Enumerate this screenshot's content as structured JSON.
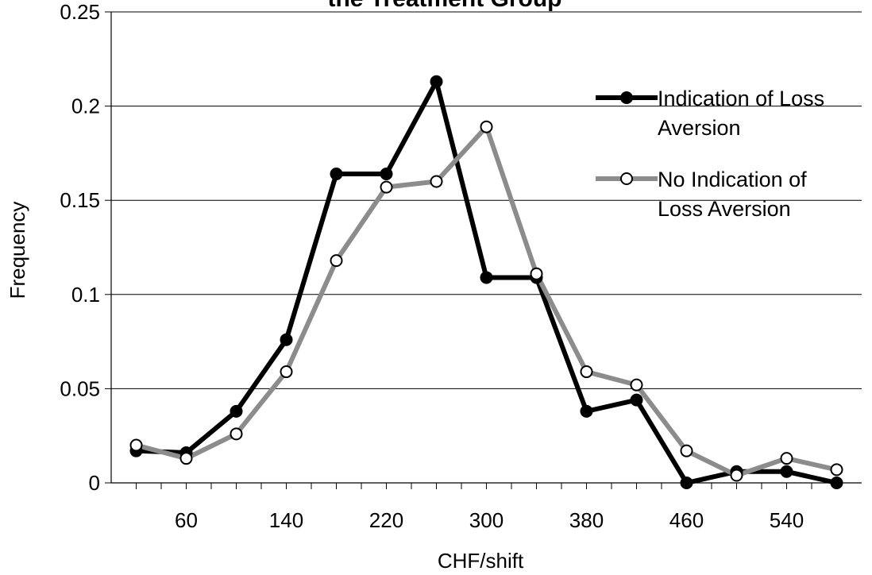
{
  "chart_data": {
    "type": "line",
    "title": "the Treatment Group",
    "xlabel": "CHF/shift",
    "ylabel": "Frequency",
    "x": [
      20,
      60,
      100,
      140,
      180,
      220,
      260,
      300,
      340,
      380,
      420,
      460,
      500,
      540,
      580
    ],
    "x_tick_labels": [
      "60",
      "140",
      "220",
      "300",
      "380",
      "460",
      "540"
    ],
    "x_tick_values": [
      60,
      140,
      220,
      300,
      380,
      460,
      540
    ],
    "y_tick_labels": [
      "0",
      "0.05",
      "0.1",
      "0.15",
      "0.2",
      "0.25"
    ],
    "ylim": [
      0,
      0.25
    ],
    "grid": "horizontal",
    "legend_position": "top-right",
    "series": [
      {
        "name": "Indication of Loss Aversion",
        "name_lines": [
          "Indication of Loss",
          "Aversion"
        ],
        "color": "#000000",
        "marker": "filled-circle",
        "values": [
          0.017,
          0.016,
          0.038,
          0.076,
          0.164,
          0.164,
          0.213,
          0.109,
          0.109,
          0.038,
          0.044,
          0.0,
          0.006,
          0.006,
          0.0
        ]
      },
      {
        "name": "No Indication of Loss Aversion",
        "name_lines": [
          "No Indication of",
          "Loss Aversion"
        ],
        "color": "#8c8c8c",
        "marker": "open-circle",
        "values": [
          0.02,
          0.013,
          0.026,
          0.059,
          0.118,
          0.157,
          0.16,
          0.189,
          0.111,
          0.059,
          0.052,
          0.017,
          0.004,
          0.013,
          0.007
        ]
      }
    ]
  }
}
